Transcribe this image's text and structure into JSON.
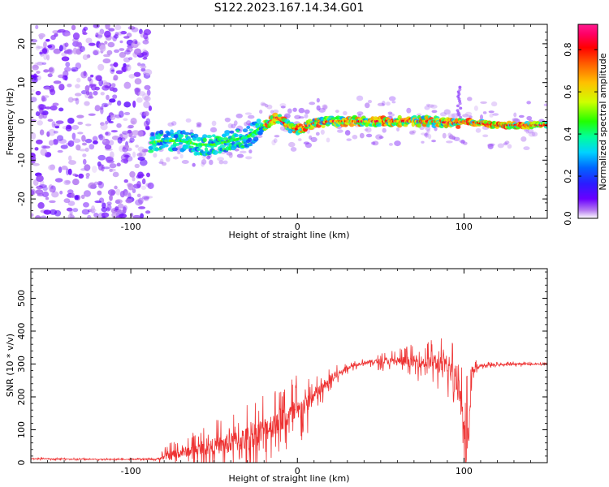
{
  "title": "S122.2023.167.14.34.G01",
  "chart_data": [
    {
      "type": "heatmap",
      "xlabel": "Height of straight line (km)",
      "ylabel": "Frequency (Hz)",
      "xlim": [
        -160,
        150
      ],
      "ylim": [
        -25,
        25
      ],
      "xticks": [
        -100,
        0,
        100
      ],
      "yticks": [
        -20,
        -10,
        0,
        10,
        20
      ],
      "colorbar": {
        "label": "Normalized spectral amplitude",
        "range": [
          0.0,
          0.92
        ],
        "ticks": [
          "0.0",
          "0.2",
          "0.4",
          "0.6",
          "0.8"
        ],
        "tick_values": [
          0.0,
          0.2,
          0.4,
          0.6,
          0.8
        ],
        "colormap": [
          "#ffffff",
          "#b77ff0",
          "#6a00ff",
          "#2a1cff",
          "#0064ff",
          "#00d2ff",
          "#00ff9a",
          "#22ff00",
          "#cfff00",
          "#ffc000",
          "#ff5a00",
          "#ff0000",
          "#ff0064",
          "#ff1a90"
        ]
      },
      "dominant_frequency_track": {
        "x": [
          -88,
          -80,
          -70,
          -60,
          -50,
          -40,
          -30,
          -20,
          -12,
          -5,
          0,
          10,
          20,
          40,
          60,
          80,
          96,
          100,
          120,
          150
        ],
        "frequency": [
          -5.5,
          -5,
          -5,
          -6,
          -6,
          -5,
          -4,
          -1,
          1,
          -1.5,
          -2,
          -0.5,
          0,
          0,
          0,
          0,
          -0.5,
          0,
          -1,
          -1
        ]
      },
      "noise_region_x": [
        -160,
        -88
      ]
    },
    {
      "type": "line",
      "xlabel": "Height of straight line (km)",
      "ylabel": "SNR (10 * v/v)",
      "xlim": [
        -160,
        150
      ],
      "ylim": [
        0,
        590
      ],
      "xticks": [
        -100,
        0,
        100
      ],
      "yticks": [
        0,
        100,
        200,
        300,
        400,
        500
      ],
      "line_color": "#ee3333",
      "envelope": {
        "x": [
          -160,
          -120,
          -85,
          -78,
          -70,
          -60,
          -50,
          -40,
          -30,
          -20,
          -10,
          0,
          10,
          20,
          30,
          40,
          60,
          80,
          90,
          96,
          100,
          103,
          105,
          110,
          130,
          150
        ],
        "baseline": [
          12,
          10,
          10,
          20,
          30,
          40,
          50,
          60,
          75,
          100,
          130,
          150,
          200,
          250,
          290,
          305,
          310,
          305,
          290,
          250,
          150,
          60,
          280,
          295,
          300,
          300
        ],
        "spike_amplitude": [
          4,
          3,
          4,
          40,
          50,
          60,
          80,
          100,
          120,
          130,
          120,
          130,
          80,
          40,
          20,
          15,
          40,
          70,
          100,
          120,
          180,
          300,
          40,
          10,
          8,
          8
        ]
      }
    }
  ]
}
